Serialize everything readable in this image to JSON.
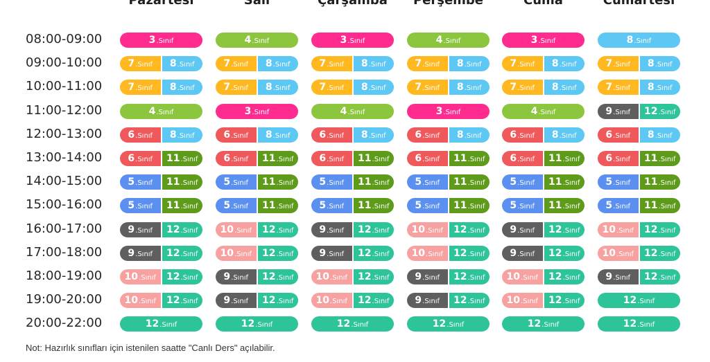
{
  "class_suffix": ".Sınıf",
  "class_colors": {
    "3": "#ff2b8f",
    "4": "#8cc63f",
    "5": "#5b8ff0",
    "6": "#f0595c",
    "7": "#ffb820",
    "8": "#5ec8f5",
    "9": "#5f5f5f",
    "10": "#f8a1a1",
    "11": "#5e9b1a",
    "12": "#2dc49a"
  },
  "days": [
    "Pazartesi",
    "Salı",
    "Çarşamba",
    "Perşembe",
    "Cuma",
    "Cumartesi"
  ],
  "rows": [
    {
      "time": "08:00-09:00",
      "slots": [
        [
          "3"
        ],
        [
          "4"
        ],
        [
          "3"
        ],
        [
          "4"
        ],
        [
          "3"
        ],
        [
          "8"
        ]
      ]
    },
    {
      "time": "09:00-10:00",
      "slots": [
        [
          "7",
          "8"
        ],
        [
          "7",
          "8"
        ],
        [
          "7",
          "8"
        ],
        [
          "7",
          "8"
        ],
        [
          "7",
          "8"
        ],
        [
          "7",
          "8"
        ]
      ]
    },
    {
      "time": "10:00-11:00",
      "slots": [
        [
          "7",
          "8"
        ],
        [
          "7",
          "8"
        ],
        [
          "7",
          "8"
        ],
        [
          "7",
          "8"
        ],
        [
          "7",
          "8"
        ],
        [
          "7",
          "8"
        ]
      ]
    },
    {
      "time": "11:00-12:00",
      "slots": [
        [
          "4"
        ],
        [
          "3"
        ],
        [
          "4"
        ],
        [
          "3"
        ],
        [
          "4"
        ],
        [
          "9",
          "12"
        ]
      ]
    },
    {
      "time": "12:00-13:00",
      "slots": [
        [
          "6",
          "8"
        ],
        [
          "6",
          "8"
        ],
        [
          "6",
          "8"
        ],
        [
          "6",
          "8"
        ],
        [
          "6",
          "8"
        ],
        [
          "6",
          "8"
        ]
      ]
    },
    {
      "time": "13:00-14:00",
      "slots": [
        [
          "6",
          "11"
        ],
        [
          "6",
          "11"
        ],
        [
          "6",
          "11"
        ],
        [
          "6",
          "11"
        ],
        [
          "6",
          "11"
        ],
        [
          "6",
          "11"
        ]
      ]
    },
    {
      "time": "14:00-15:00",
      "slots": [
        [
          "5",
          "11"
        ],
        [
          "5",
          "11"
        ],
        [
          "5",
          "11"
        ],
        [
          "5",
          "11"
        ],
        [
          "5",
          "11"
        ],
        [
          "5",
          "11"
        ]
      ]
    },
    {
      "time": "15:00-16:00",
      "slots": [
        [
          "5",
          "11"
        ],
        [
          "5",
          "11"
        ],
        [
          "5",
          "11"
        ],
        [
          "5",
          "11"
        ],
        [
          "5",
          "11"
        ],
        [
          "5",
          "11"
        ]
      ]
    },
    {
      "time": "16:00-17:00",
      "slots": [
        [
          "9",
          "12"
        ],
        [
          "10",
          "12"
        ],
        [
          "9",
          "12"
        ],
        [
          "10",
          "12"
        ],
        [
          "9",
          "12"
        ],
        [
          "10",
          "12"
        ]
      ]
    },
    {
      "time": "17:00-18:00",
      "slots": [
        [
          "9",
          "12"
        ],
        [
          "10",
          "12"
        ],
        [
          "9",
          "12"
        ],
        [
          "10",
          "12"
        ],
        [
          "9",
          "12"
        ],
        [
          "10",
          "12"
        ]
      ]
    },
    {
      "time": "18:00-19:00",
      "slots": [
        [
          "10",
          "12"
        ],
        [
          "9",
          "12"
        ],
        [
          "10",
          "12"
        ],
        [
          "9",
          "12"
        ],
        [
          "10",
          "12"
        ],
        [
          "9",
          "12"
        ]
      ]
    },
    {
      "time": "19:00-20:00",
      "slots": [
        [
          "10",
          "12"
        ],
        [
          "9",
          "12"
        ],
        [
          "10",
          "12"
        ],
        [
          "9",
          "12"
        ],
        [
          "10",
          "12"
        ],
        [
          "12"
        ]
      ]
    },
    {
      "time": "20:00-22:00",
      "slots": [
        [
          "12"
        ],
        [
          "12"
        ],
        [
          "12"
        ],
        [
          "12"
        ],
        [
          "12"
        ],
        [
          "12"
        ]
      ]
    }
  ],
  "footnote": "Not: Hazırlık sınıfları için istenilen saatte \"Canlı Ders\" açılabilir."
}
